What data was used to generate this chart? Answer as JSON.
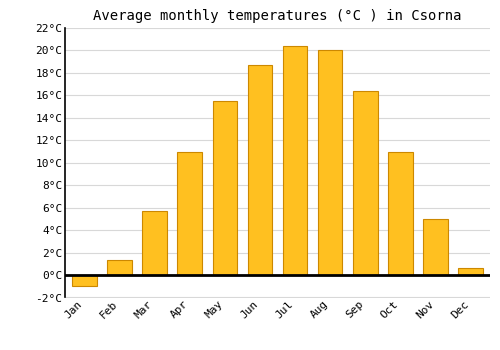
{
  "title": "Average monthly temperatures (°C ) in Csorna",
  "months": [
    "Jan",
    "Feb",
    "Mar",
    "Apr",
    "May",
    "Jun",
    "Jul",
    "Aug",
    "Sep",
    "Oct",
    "Nov",
    "Dec"
  ],
  "values": [
    -1.0,
    1.3,
    5.7,
    11.0,
    15.5,
    18.7,
    20.4,
    20.0,
    16.4,
    11.0,
    5.0,
    0.6
  ],
  "bar_color": "#FFC020",
  "bar_edge_color": "#CC8800",
  "background_color": "#ffffff",
  "grid_color": "#d8d8d8",
  "ylim": [
    -2,
    22
  ],
  "yticks": [
    -2,
    0,
    2,
    4,
    6,
    8,
    10,
    12,
    14,
    16,
    18,
    20,
    22
  ],
  "title_fontsize": 10,
  "tick_fontsize": 8,
  "font_family": "monospace"
}
